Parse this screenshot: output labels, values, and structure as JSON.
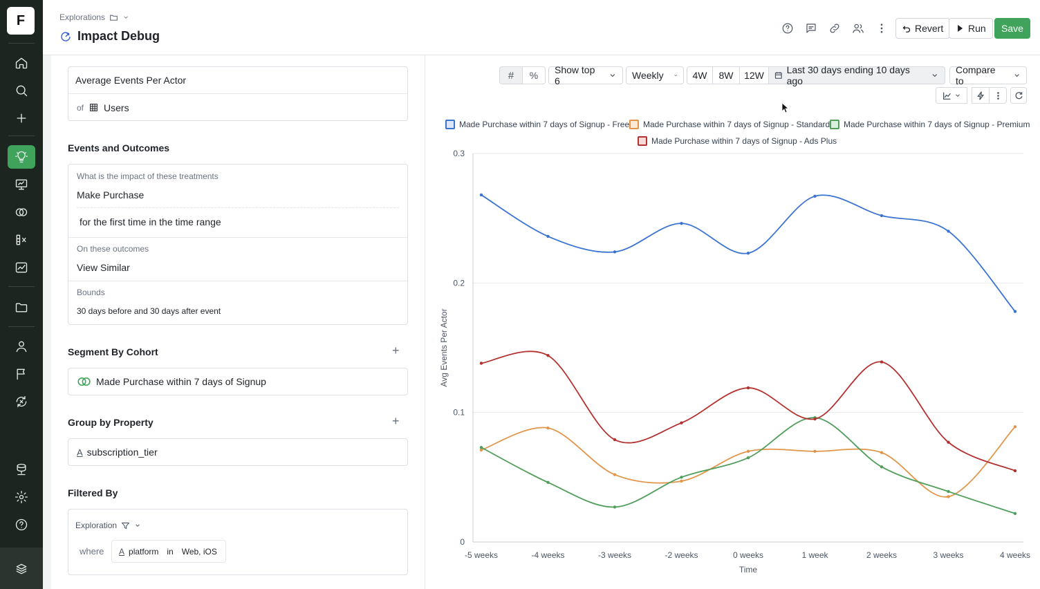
{
  "app": {
    "logo_letter": "F",
    "breadcrumb": "Explorations",
    "title": "Impact Debug"
  },
  "header_buttons": {
    "revert": "Revert",
    "run": "Run",
    "save": "Save"
  },
  "left": {
    "metric": {
      "label": "Average Events Per Actor",
      "of": "of",
      "entity": "Users"
    },
    "events_section": "Events and Outcomes",
    "treatments_label": "What is the impact of these treatments",
    "treatment_event": "Make Purchase",
    "treatment_qualifier": "for the first time in the time range",
    "outcomes_label": "On these outcomes",
    "outcome_event": "View Similar",
    "bounds_label": "Bounds",
    "bounds_value": "30 days before and 30 days after event",
    "segment_section": "Segment By Cohort",
    "segment_value": "Made Purchase within 7 days of Signup",
    "group_section": "Group by Property",
    "group_value": "subscription_tier",
    "filter_section": "Filtered By",
    "filter_scope": "Exploration",
    "filter_where": "where",
    "filter_property": "platform",
    "filter_op": "in",
    "filter_values": "Web, iOS"
  },
  "toolbar": {
    "show_top": "Show top 6",
    "granularity": "Weekly",
    "range_4w": "4W",
    "range_8w": "8W",
    "range_12w": "12W",
    "date_range": "Last 30 days ending 10 days ago",
    "compare": "Compare to"
  },
  "colors": {
    "accent_green": "#3fa35b",
    "free": "#3b73d1",
    "standard": "#e0954a",
    "premium": "#4f9e5a",
    "ads_plus": "#b3312f"
  },
  "chart_data": {
    "type": "line",
    "xlabel": "Time",
    "ylabel": "Avg Events Per Actor",
    "ylim": [
      0,
      0.3
    ],
    "yticks": [
      "0",
      "0.1",
      "0.2",
      "0.3"
    ],
    "categories": [
      "-5 weeks",
      "-4 weeks",
      "-3 weeks",
      "-2 weeks",
      "0 weeks",
      "1 week",
      "2 weeks",
      "3 weeks",
      "4 weeks"
    ],
    "grid": true,
    "legend_position": "top",
    "series": [
      {
        "name": "Made Purchase within 7 days of Signup - Free",
        "color": "#3b73d1",
        "values": [
          0.268,
          0.236,
          0.224,
          0.246,
          0.223,
          0.267,
          0.252,
          0.24,
          0.178
        ]
      },
      {
        "name": "Made Purchase within 7 days of Signup - Standard",
        "color": "#e0954a",
        "values": [
          0.071,
          0.088,
          0.052,
          0.047,
          0.07,
          0.07,
          0.069,
          0.035,
          0.089
        ]
      },
      {
        "name": "Made Purchase within 7 days of Signup - Premium",
        "color": "#4f9e5a",
        "values": [
          0.073,
          0.046,
          0.027,
          0.05,
          0.065,
          0.096,
          0.058,
          0.039,
          0.022
        ]
      },
      {
        "name": "Made Purchase within 7 days of Signup - Ads Plus",
        "color": "#b3312f",
        "values": [
          0.138,
          0.144,
          0.079,
          0.092,
          0.119,
          0.095,
          0.139,
          0.077,
          0.055
        ]
      }
    ]
  }
}
